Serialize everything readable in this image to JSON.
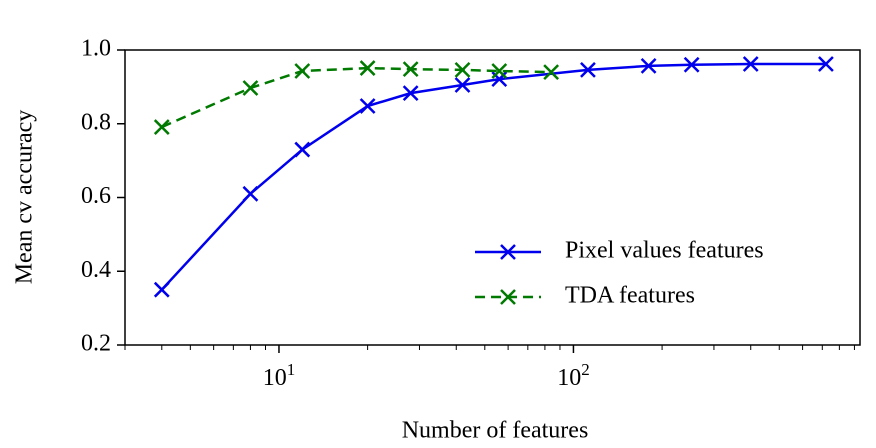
{
  "chart_data": {
    "type": "line",
    "x_label": "Number of features",
    "y_label": "Mean cv accuracy",
    "xscale": "log",
    "xlim": [
      3,
      940
    ],
    "ylim": [
      0.2,
      1.0
    ],
    "xticks": [
      {
        "value": 10,
        "label": "10^1"
      },
      {
        "value": 100,
        "label": "10^2"
      }
    ],
    "xminorticks": [
      3,
      4,
      5,
      6,
      7,
      8,
      9,
      20,
      30,
      40,
      50,
      60,
      70,
      80,
      90,
      200,
      300,
      400,
      500,
      600,
      700,
      800,
      900
    ],
    "yticks": [
      0.2,
      0.4,
      0.6,
      0.8,
      {
        "value": 1,
        "label": "1.0"
      }
    ],
    "legend": "lower right",
    "series": [
      {
        "name": "Pixel values features",
        "color": "#0000ee",
        "dash": "solid",
        "x": [
          4,
          8,
          12,
          20,
          28,
          42,
          56,
          112,
          180,
          252,
          400,
          720
        ],
        "values": [
          0.35,
          0.61,
          0.73,
          0.848,
          0.883,
          0.905,
          0.921,
          0.946,
          0.957,
          0.96,
          0.962,
          0.962
        ]
      },
      {
        "name": "TDA features",
        "color": "#007a00",
        "dash": "dashed",
        "x": [
          4,
          8,
          12,
          20,
          28,
          42,
          56,
          84
        ],
        "values": [
          0.791,
          0.897,
          0.943,
          0.951,
          0.948,
          0.946,
          0.943,
          0.94
        ]
      }
    ]
  }
}
